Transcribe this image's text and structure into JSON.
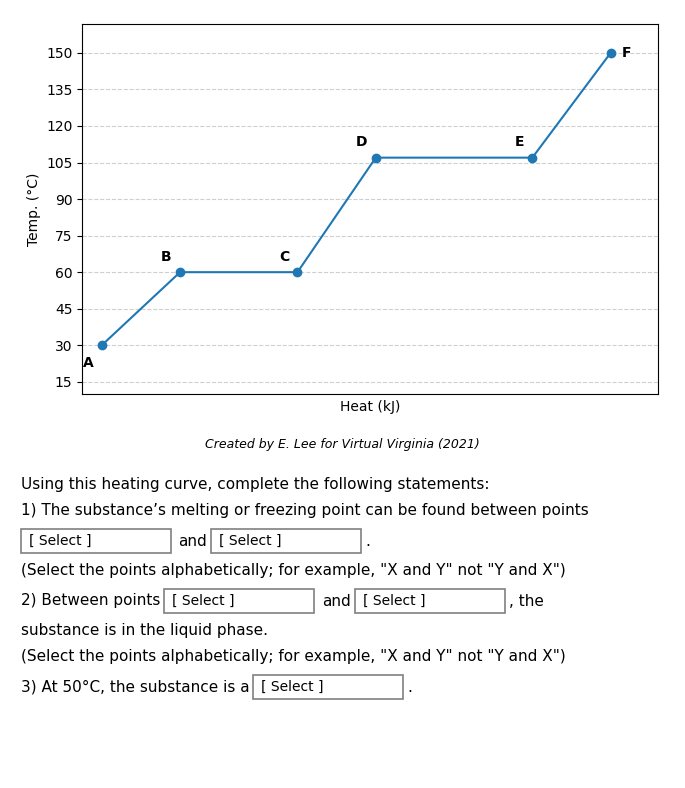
{
  "chart_data": {
    "type": "line",
    "x": [
      0,
      1,
      2.5,
      3.5,
      5.5,
      6.5
    ],
    "values": [
      30,
      60,
      60,
      107,
      107,
      150
    ],
    "point_labels": [
      "A",
      "B",
      "C",
      "D",
      "E",
      "F"
    ],
    "xlabel": "Heat (kJ)",
    "ylabel": "Temp. (°C)",
    "xlim": [
      -0.25,
      7.1
    ],
    "ylim": [
      10,
      162
    ],
    "yticks": [
      15,
      30,
      45,
      60,
      75,
      90,
      105,
      120,
      135,
      150
    ],
    "grid": true,
    "tick_labels": "y",
    "marker": "o",
    "credit": "Created by E. Lee for Virtual Virginia (2021)",
    "select_label": "[ Select ]",
    "annotations": [
      [
        "Using this heating curve, complete the following statements:"
      ],
      [
        "1) The substance’s melting or freezing point can be found between points"
      ],
      [
        "[ Select ]",
        "and",
        "[ Select ]",
        "."
      ],
      [
        "(Select the points alphabetically; for example, \"X and Y\" not \"Y and X\")"
      ],
      [
        "2) Between points",
        "[ Select ]",
        "and",
        "[ Select ]",
        ", the"
      ],
      [
        "substance is in the liquid phase."
      ],
      [
        "(Select the points alphabetically; for example, \"X and Y\" not \"Y and X\")"
      ],
      [
        "3) At 50°C, the substance is a",
        "[ Select ]",
        "."
      ]
    ]
  }
}
